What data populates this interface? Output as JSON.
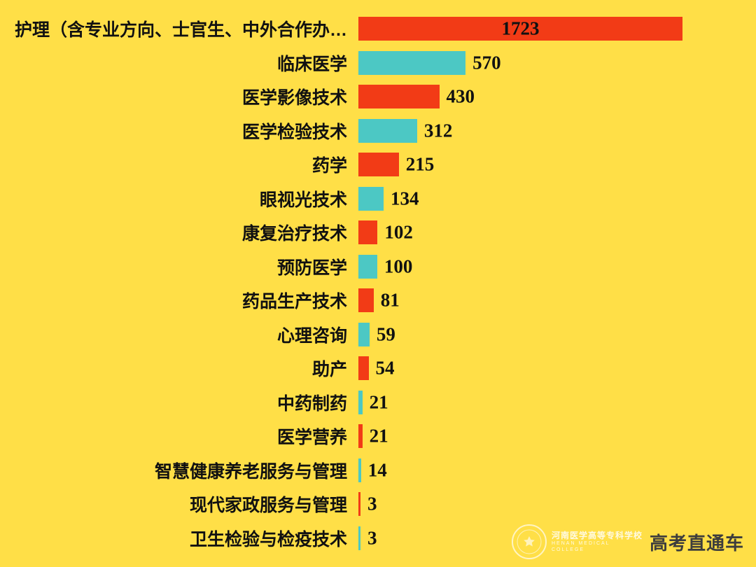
{
  "chart_data": {
    "type": "bar",
    "orientation": "horizontal",
    "title": "",
    "xlabel": "",
    "ylabel": "",
    "grid": false,
    "legend": "none",
    "background": "#ffdf47",
    "text_color": "#111111",
    "categories": [
      "护理（含专业方向、士官生、中外合作办…",
      "临床医学",
      "医学影像技术",
      "医学检验技术",
      "药学",
      "眼视光技术",
      "康复治疗技术",
      "预防医学",
      "药品生产技术",
      "心理咨询",
      "助产",
      "中药制药",
      "医学营养",
      "智慧健康养老服务与管理",
      "现代家政服务与管理",
      "卫生检验与检疫技术"
    ],
    "values": [
      1723,
      570,
      430,
      312,
      215,
      134,
      102,
      100,
      81,
      59,
      54,
      21,
      21,
      14,
      3,
      3
    ],
    "bar_colors": [
      "#f23b16",
      "#4cc8c4",
      "#f23b16",
      "#4cc8c4",
      "#f23b16",
      "#4cc8c4",
      "#f23b16",
      "#4cc8c4",
      "#f23b16",
      "#4cc8c4",
      "#f23b16",
      "#4cc8c4",
      "#f23b16",
      "#4cc8c4",
      "#f23b16",
      "#4cc8c4"
    ],
    "xlim": [
      0,
      1750
    ]
  },
  "watermark": {
    "college_zh": "河南医学高等专科学校",
    "college_en": "HENAN MEDICAL COLLEGE",
    "brand": "高考直通车"
  }
}
